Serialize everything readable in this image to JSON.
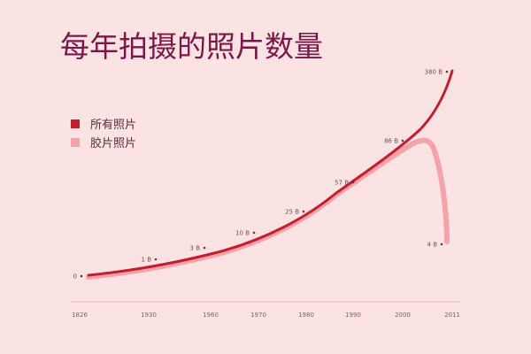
{
  "chart_data": {
    "type": "line",
    "title": "每年拍摄的照片数量",
    "x_ticks": [
      "1826",
      "1930",
      "1960",
      "1970",
      "1980",
      "1990",
      "2000",
      "2011"
    ],
    "series": [
      {
        "name": "所有照片",
        "color": "#c41e2e",
        "x": [
          1826,
          1930,
          1960,
          1970,
          1980,
          1990,
          2000,
          2011
        ],
        "y": [
          0,
          1,
          3,
          10,
          25,
          57,
          86,
          380
        ]
      },
      {
        "name": "胶片照片",
        "color": "#f4a3aa",
        "x": [
          1826,
          1930,
          1960,
          1970,
          1980,
          1990,
          2000,
          2011
        ],
        "y": [
          0,
          1,
          3,
          10,
          25,
          57,
          86,
          4
        ]
      }
    ],
    "annotations": [
      "0",
      "1 B",
      "3 B",
      "10 B",
      "25 B",
      "57 B",
      "86 B",
      "380 B",
      "4 B"
    ],
    "legend_position": "left",
    "grid": false
  }
}
